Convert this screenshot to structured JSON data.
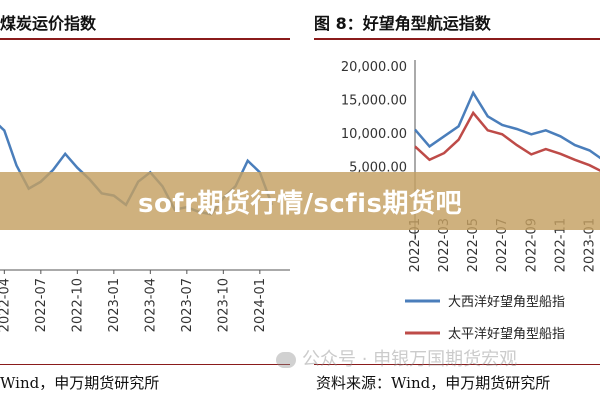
{
  "left_chart": {
    "title": "煤炭运价指数",
    "source": "Wind，申万期货研究所"
  },
  "right_chart": {
    "title": "图 8：好望角型航运指数",
    "source": "资料来源：Wind，申万期货研究所"
  },
  "banner": {
    "text": "sofr期货行情/scfis期货吧"
  },
  "watermark": {
    "text": "公众号 · 申银万国期货宏观"
  },
  "colors": {
    "series_blue": "#4a7ebb",
    "series_red": "#be4b48",
    "rule": "#8a1b1b"
  },
  "chart_data": [
    {
      "type": "line",
      "title": "煤炭运价指数",
      "x_ticks": [
        "2022-04",
        "2022-07",
        "2022-10",
        "2023-01",
        "2023-04",
        "2023-07",
        "2023-10",
        "2024-01"
      ],
      "x": [
        "2022-02",
        "2022-03",
        "2022-04",
        "2022-05",
        "2022-06",
        "2022-07",
        "2022-08",
        "2022-09",
        "2022-10",
        "2022-11",
        "2022-12",
        "2023-01",
        "2023-02",
        "2023-03",
        "2023-04",
        "2023-05",
        "2023-06",
        "2023-07",
        "2023-08",
        "2023-09",
        "2023-10",
        "2023-11",
        "2023-12",
        "2024-01",
        "2024-02"
      ],
      "series": [
        {
          "values": [
            1150,
            1300,
            1200,
            900,
            700,
            760,
            860,
            1000,
            880,
            780,
            660,
            640,
            560,
            760,
            840,
            720,
            520,
            540,
            500,
            480,
            620,
            720,
            940,
            840,
            560
          ]
        }
      ],
      "ylim": [
        0,
        1600
      ],
      "grid": false
    },
    {
      "type": "line",
      "title": "图 8：好望角型航运指数",
      "y_ticks": [
        "20,000.00",
        "15,000.00",
        "10,000.00",
        "5,000.00"
      ],
      "ylim": [
        0,
        20000
      ],
      "x_ticks": [
        "2022-01",
        "2022-03",
        "2022-05",
        "2022-07",
        "2022-09",
        "2022-11",
        "2023-01"
      ],
      "x": [
        "2022-01",
        "2022-02",
        "2022-03",
        "2022-04",
        "2022-05",
        "2022-06",
        "2022-07",
        "2022-08",
        "2022-09",
        "2022-10",
        "2022-11",
        "2022-12",
        "2023-01",
        "2023-02"
      ],
      "series": [
        {
          "name": "大西洋好望角型船指",
          "color": "#4a7ebb",
          "values": [
            10500,
            8000,
            9500,
            11000,
            16000,
            12500,
            11200,
            10600,
            9800,
            10400,
            9500,
            8200,
            7400,
            5900
          ]
        },
        {
          "name": "太平洋好望角型船指",
          "color": "#be4b48",
          "values": [
            8000,
            6000,
            7000,
            9000,
            13000,
            10400,
            9800,
            8200,
            6800,
            7600,
            6900,
            6000,
            5200,
            4100
          ]
        }
      ],
      "legend": "bottom",
      "grid": false
    }
  ]
}
